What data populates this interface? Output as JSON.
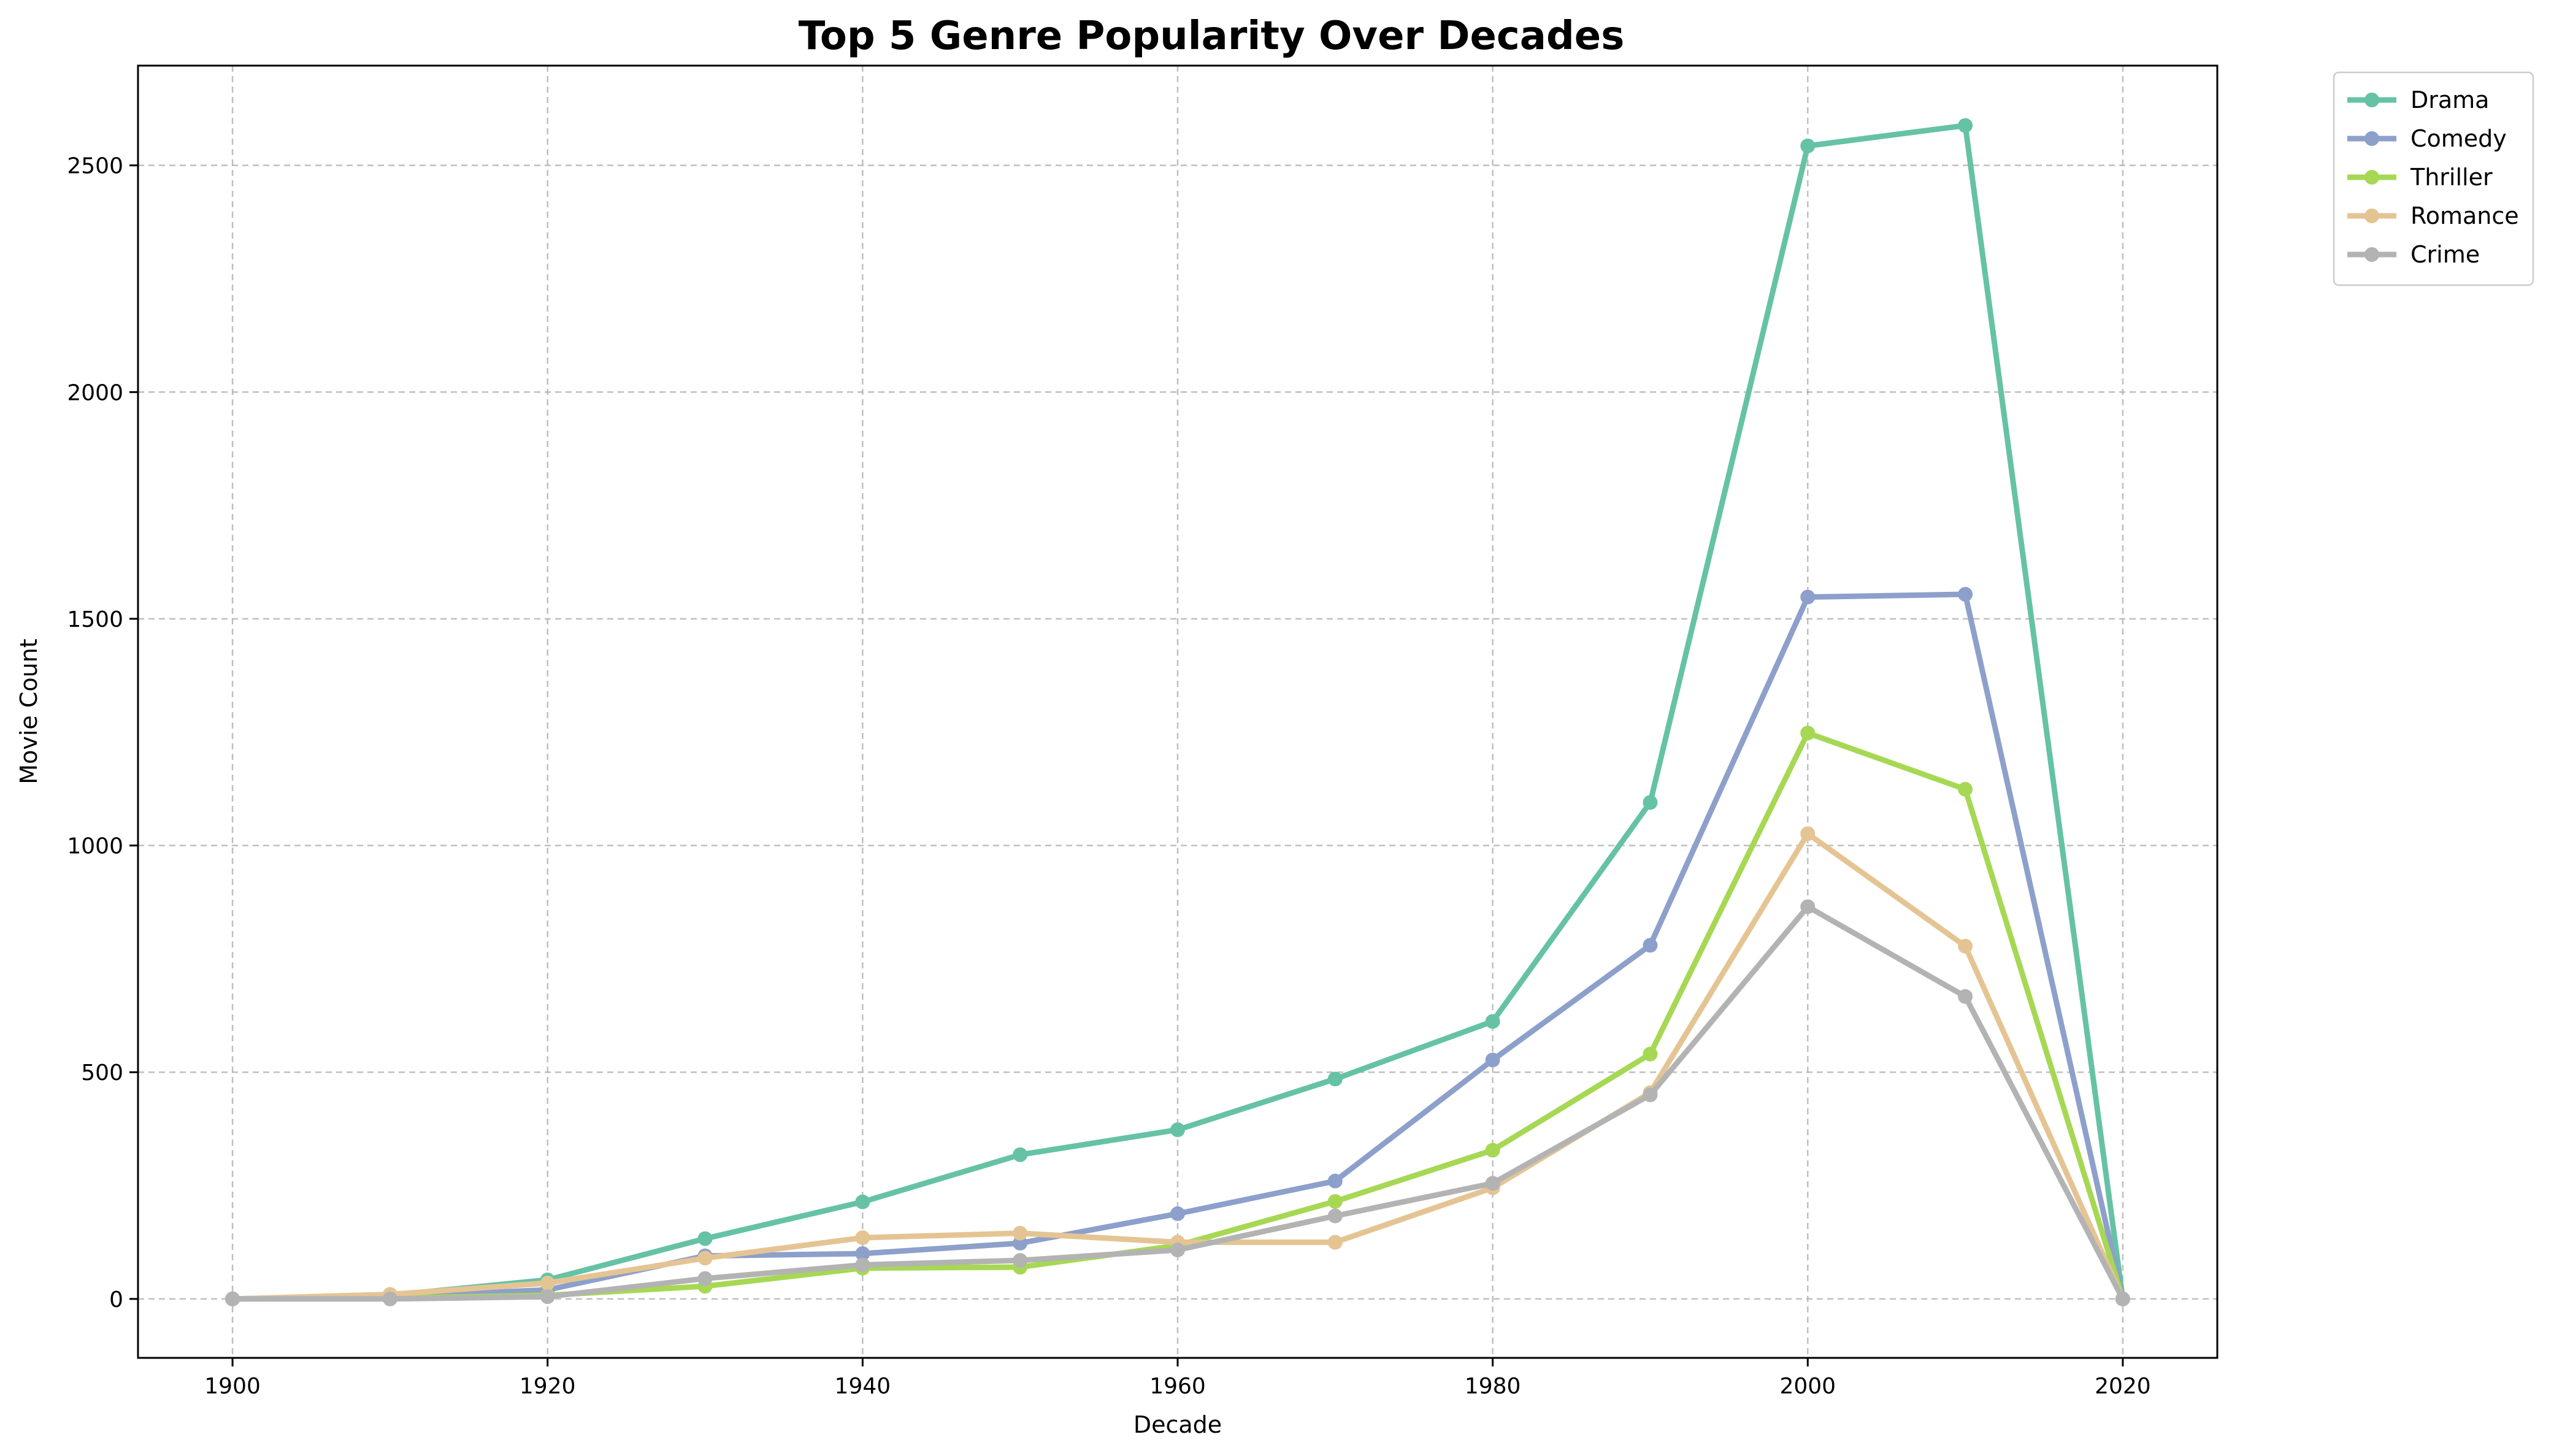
{
  "chart_data": {
    "type": "line",
    "title": "Top 5 Genre Popularity Over Decades",
    "xlabel": "Decade",
    "ylabel": "Movie Count",
    "x": [
      1900,
      1910,
      1920,
      1930,
      1940,
      1950,
      1960,
      1970,
      1980,
      1990,
      2000,
      2010,
      2020
    ],
    "xlim": [
      1894,
      2026
    ],
    "ylim": [
      -130,
      2720
    ],
    "xticks": [
      1900,
      1920,
      1940,
      1960,
      1980,
      2000,
      2020
    ],
    "yticks": [
      0,
      500,
      1000,
      1500,
      2000,
      2500
    ],
    "grid": true,
    "legend_position": "outside top-right",
    "series": [
      {
        "name": "Drama",
        "color": "#66c2a5",
        "values": [
          0,
          8,
          42,
          133,
          214,
          318,
          373,
          485,
          612,
          1095,
          2543,
          2588,
          0
        ]
      },
      {
        "name": "Comedy",
        "color": "#8da0cb",
        "values": [
          0,
          5,
          20,
          95,
          100,
          123,
          188,
          260,
          527,
          780,
          1548,
          1554,
          0
        ]
      },
      {
        "name": "Thriller",
        "color": "#a6d854",
        "values": [
          0,
          2,
          8,
          28,
          68,
          70,
          118,
          215,
          328,
          540,
          1248,
          1124,
          0
        ]
      },
      {
        "name": "Romance",
        "color": "#e5c494",
        "values": [
          0,
          10,
          35,
          90,
          135,
          145,
          125,
          125,
          245,
          455,
          1026,
          778,
          0
        ]
      },
      {
        "name": "Crime",
        "color": "#b3b3b3",
        "values": [
          0,
          0,
          5,
          45,
          75,
          85,
          108,
          183,
          255,
          450,
          865,
          667,
          0
        ]
      }
    ]
  }
}
